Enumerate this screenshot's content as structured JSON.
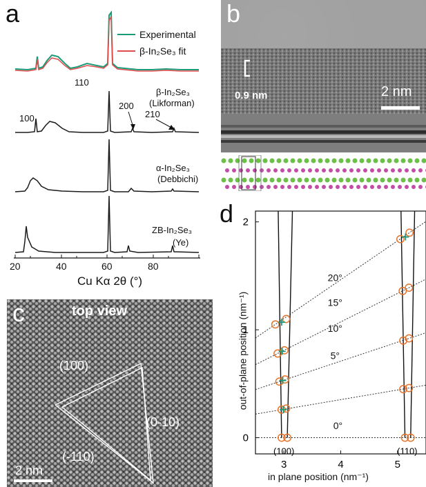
{
  "panels": {
    "a": "a",
    "b": "b",
    "c": "c",
    "d": "d"
  },
  "panel_a": {
    "legend": {
      "experimental": "Experimental",
      "fit": "β-In₂Se₃ fit"
    },
    "colors": {
      "experimental": "#1a9a78",
      "fit": "#e04a4a",
      "reference": "#1a1a1a"
    },
    "peak_labels": {
      "p110": "110",
      "p100": "100",
      "p200": "200",
      "p210": "210"
    },
    "references": [
      {
        "name": "β-In₂Se₃",
        "source": "(Likforman)"
      },
      {
        "name": "α-In₂Se₃",
        "source": "(Debbichi)"
      },
      {
        "name": "ZB-In₂Se₃",
        "source": "(Ye)"
      }
    ],
    "x_ticks": [
      "20",
      "40",
      "60",
      "80"
    ],
    "x_label": "Cu Kα 2θ (°)"
  },
  "panel_b": {
    "scale_upper": "0.9 nm",
    "scale_bar": "2 nm"
  },
  "panel_c": {
    "title": "top view",
    "facets": {
      "f100": "(100)",
      "f0m10": "(0-10)",
      "fm110": "(-110)"
    },
    "scale_bar": "2 nm"
  },
  "chart_data": {
    "type": "scatter",
    "xlabel": "in plane position (nm⁻¹)",
    "ylabel": "out-of-plane position (nm⁻¹)",
    "xlim": [
      2.5,
      5.5
    ],
    "ylim": [
      -0.15,
      2.1
    ],
    "x_ticks": [
      "3",
      "4",
      "5"
    ],
    "y_ticks": [
      "0",
      "1",
      "2"
    ],
    "angle_labels": [
      "20°",
      "15°",
      "10°",
      "5°",
      "0°"
    ],
    "bottom_labels": [
      "(100)",
      "(110)"
    ],
    "colors": {
      "circle": "#e8742a",
      "cross": "#1a9a78"
    },
    "tilt_series": [
      {
        "label": "0°",
        "points": [
          [
            2.96,
            0.0
          ],
          [
            3.06,
            0.0
          ],
          [
            5.13,
            0.0
          ],
          [
            5.23,
            0.0
          ]
        ]
      },
      {
        "label": "5°",
        "points": [
          [
            2.96,
            0.26
          ],
          [
            3.04,
            0.27
          ],
          [
            5.1,
            0.45
          ],
          [
            5.2,
            0.46
          ]
        ]
      },
      {
        "label": "10°",
        "points": [
          [
            2.92,
            0.52
          ],
          [
            3.02,
            0.54
          ],
          [
            5.1,
            0.9
          ],
          [
            5.2,
            0.92
          ]
        ]
      },
      {
        "label": "15°",
        "points": [
          [
            2.89,
            0.78
          ],
          [
            3.01,
            0.81
          ],
          [
            5.09,
            1.36
          ],
          [
            5.2,
            1.39
          ]
        ]
      },
      {
        "label": "20°",
        "points": [
          [
            2.85,
            1.05
          ],
          [
            3.04,
            1.1
          ],
          [
            5.05,
            1.84
          ],
          [
            5.21,
            1.9
          ]
        ]
      }
    ],
    "crosses": [
      [
        2.99,
        0.26
      ],
      [
        2.98,
        0.53
      ],
      [
        2.97,
        0.8
      ],
      [
        2.96,
        1.07
      ],
      [
        5.14,
        1.86
      ]
    ]
  }
}
